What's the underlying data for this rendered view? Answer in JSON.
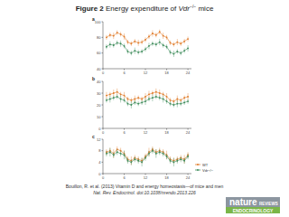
{
  "title": {
    "label": "Figure 2",
    "text": "Energy expenditure of",
    "gene": "Vdr",
    "genotype": "−/−",
    "suffix": "mice"
  },
  "citation": {
    "line1": "Bouillon, R. et al. (2013) Vitamin D and energy homeostasis—of mice and men",
    "line2": "Nat. Rev. Endocrinol. doi:10.1038/nrendo.2013.226"
  },
  "logo": {
    "name": "nature",
    "line1": "REVIEWS",
    "line2": "ENDOCRINOLOGY"
  },
  "chart_data": [
    {
      "type": "line",
      "title": "a",
      "x": [
        1,
        2,
        3,
        4,
        5,
        6,
        7,
        8,
        9,
        10,
        11,
        12,
        13,
        14,
        15,
        16,
        17,
        18,
        19,
        20,
        21,
        22,
        23,
        24
      ],
      "xlim": [
        0,
        25
      ],
      "xticks": [
        0,
        6,
        12,
        18,
        24
      ],
      "ylim": [
        40,
        100
      ],
      "yticks": [
        40,
        60,
        80,
        100
      ],
      "series": [
        {
          "name": "WT",
          "color": "#e07b29",
          "marker": "circle",
          "values": [
            80,
            83,
            82,
            86,
            84,
            81,
            74,
            72,
            75,
            73,
            74,
            77,
            81,
            85,
            83,
            87,
            82,
            80,
            73,
            71,
            74,
            72,
            75,
            78
          ],
          "errors": [
            3,
            3,
            4,
            3,
            3,
            4,
            3,
            3,
            3,
            4,
            3,
            3,
            3,
            4,
            3,
            3,
            4,
            3,
            3,
            3,
            4,
            3,
            3,
            3
          ]
        },
        {
          "name": "Vdr−/−",
          "color": "#3d8c5a",
          "marker": "circle",
          "values": [
            68,
            71,
            70,
            73,
            72,
            69,
            62,
            60,
            63,
            61,
            62,
            65,
            69,
            72,
            71,
            74,
            70,
            68,
            61,
            59,
            62,
            60,
            63,
            66
          ],
          "errors": [
            3,
            4,
            3,
            3,
            4,
            3,
            3,
            3,
            4,
            3,
            3,
            3,
            4,
            3,
            3,
            4,
            3,
            3,
            3,
            4,
            3,
            3,
            3,
            4
          ]
        }
      ]
    },
    {
      "type": "line",
      "title": "b",
      "x": [
        1,
        2,
        3,
        4,
        5,
        6,
        7,
        8,
        9,
        10,
        11,
        12,
        13,
        14,
        15,
        16,
        17,
        18,
        19,
        20,
        21,
        22,
        23,
        24
      ],
      "xlim": [
        0,
        25
      ],
      "xticks": [
        0,
        6,
        12,
        18,
        24
      ],
      "ylim": [
        0,
        40
      ],
      "yticks": [
        0,
        10,
        20,
        30,
        40
      ],
      "series": [
        {
          "name": "WT",
          "color": "#e07b29",
          "marker": "circle",
          "values": [
            28,
            29,
            30,
            31,
            29,
            28,
            25,
            24,
            25,
            26,
            25,
            27,
            29,
            30,
            31,
            30,
            29,
            27,
            24,
            23,
            25,
            24,
            26,
            27
          ],
          "errors": [
            3,
            2,
            3,
            3,
            2,
            3,
            2,
            2,
            3,
            2,
            2,
            3,
            3,
            2,
            3,
            3,
            2,
            3,
            2,
            2,
            3,
            2,
            2,
            3
          ]
        },
        {
          "name": "Vdr−/−",
          "color": "#3d8c5a",
          "marker": "circle",
          "values": [
            24,
            25,
            26,
            27,
            25,
            24,
            21,
            20,
            22,
            21,
            22,
            23,
            25,
            26,
            27,
            26,
            25,
            23,
            21,
            20,
            21,
            21,
            22,
            23
          ],
          "errors": [
            2,
            3,
            2,
            2,
            3,
            2,
            2,
            3,
            2,
            2,
            2,
            3,
            2,
            3,
            2,
            2,
            3,
            2,
            2,
            2,
            3,
            2,
            2,
            2
          ]
        }
      ]
    },
    {
      "type": "line",
      "title": "c",
      "x": [
        1,
        2,
        3,
        4,
        5,
        6,
        7,
        8,
        9,
        10,
        11,
        12,
        13,
        14,
        15,
        16,
        17,
        18,
        19,
        20,
        21,
        22,
        23,
        24
      ],
      "xlim": [
        0,
        25
      ],
      "xticks": [
        0,
        6,
        12,
        18,
        24
      ],
      "ylim": [
        0,
        12
      ],
      "yticks": [
        0,
        4,
        8,
        12
      ],
      "legend": "right",
      "series": [
        {
          "name": "WT",
          "color": "#e07b29",
          "marker": "circle",
          "values": [
            7.5,
            8,
            7,
            8.5,
            8,
            7,
            5,
            4.5,
            5.5,
            5,
            4.5,
            6,
            7.5,
            8.5,
            7.5,
            8,
            7.5,
            6.5,
            5,
            4.5,
            5,
            5.5,
            5,
            6.5
          ],
          "errors": [
            1,
            1,
            1.5,
            1,
            1,
            1,
            1,
            1.5,
            1,
            1,
            1,
            1,
            1.5,
            1,
            1,
            1,
            1,
            1.5,
            1,
            1,
            1,
            1,
            1.5,
            1
          ]
        },
        {
          "name": "Vdr−/−",
          "color": "#3d8c5a",
          "marker": "circle",
          "values": [
            7,
            7.5,
            6.5,
            7.5,
            7,
            6.5,
            4.5,
            4,
            5,
            4.5,
            4,
            5.5,
            7,
            8,
            7,
            7.5,
            7,
            6,
            4.5,
            4,
            4.5,
            5,
            4.5,
            6
          ],
          "errors": [
            1,
            1.5,
            1,
            1,
            1,
            1.5,
            1,
            1,
            1,
            1,
            1.5,
            1,
            1,
            1,
            1.5,
            1,
            1,
            1,
            1,
            1.5,
            1,
            1,
            1,
            1
          ]
        }
      ]
    }
  ]
}
